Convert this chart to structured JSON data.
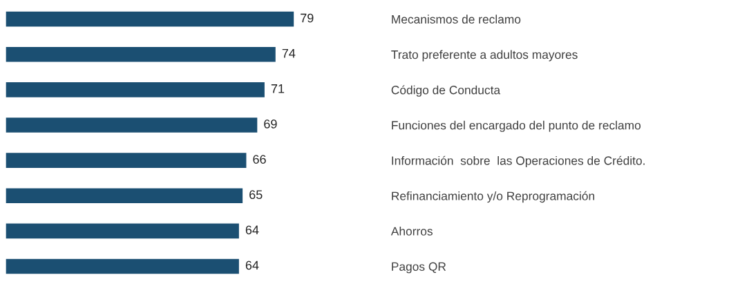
{
  "chart_data": {
    "type": "bar",
    "orientation": "horizontal",
    "data_labels": true,
    "categories": [
      "Mecanismos de reclamo",
      "Trato preferente a adultos mayores",
      "Código de Conducta",
      "Funciones del encargado del punto de reclamo",
      "Información  sobre  las Operaciones de Crédito.",
      "Refinanciamiento y/o Reprogramación",
      "Ahorros",
      "Pagos QR"
    ],
    "values": [
      79,
      74,
      71,
      69,
      66,
      65,
      64,
      64
    ],
    "color": "#1b4f72"
  }
}
